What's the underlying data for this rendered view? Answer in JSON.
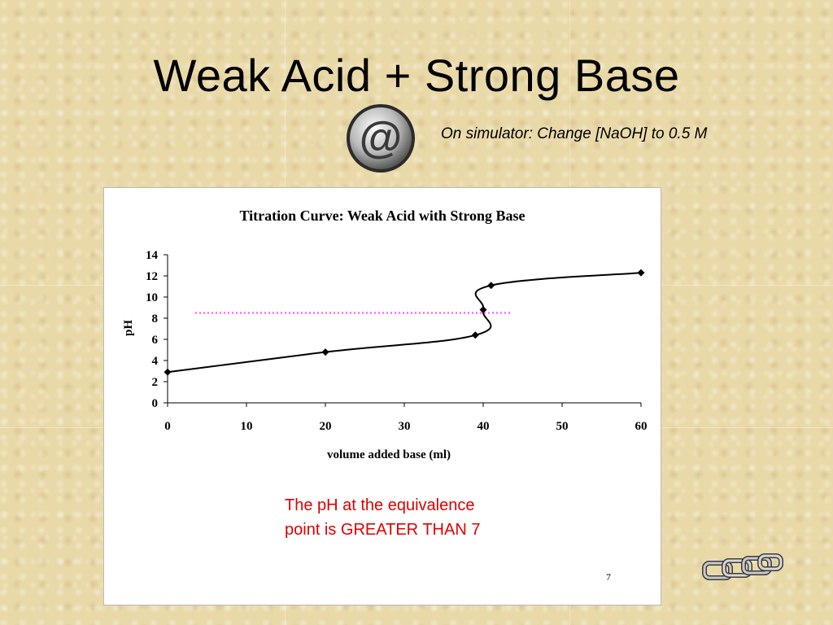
{
  "slide": {
    "title": "Weak Acid + Strong Base",
    "note_simulator": "On simulator:  Change [NaOH] to 0.5 M",
    "note_line1": "The pH at the equivalence",
    "note_line2": "point is GREATER THAN 7",
    "page_number": "7",
    "note_color": "#e00000",
    "at_icon": "at-sign-icon",
    "chain_icon": "chain-link-icon"
  },
  "chart_data": {
    "type": "line",
    "title": "Titration Curve: Weak Acid with Strong Base",
    "xlabel": "volume added base (ml)",
    "ylabel": "pH",
    "xlim": [
      0,
      60
    ],
    "ylim": [
      0,
      14
    ],
    "x_ticks": [
      0,
      10,
      20,
      30,
      40,
      50,
      60
    ],
    "y_ticks": [
      0,
      2,
      4,
      6,
      8,
      10,
      12,
      14
    ],
    "grid": false,
    "series": [
      {
        "color": "#000000",
        "marker": "diamond",
        "x": [
          0,
          20,
          39,
          40,
          41,
          60
        ],
        "y": [
          2.9,
          4.8,
          6.4,
          8.8,
          11.1,
          12.3
        ]
      }
    ],
    "reference_line": {
      "y": 8.5,
      "x_range": [
        3.5,
        43.5
      ],
      "color": "#ff66ff",
      "style": "dotted"
    }
  }
}
